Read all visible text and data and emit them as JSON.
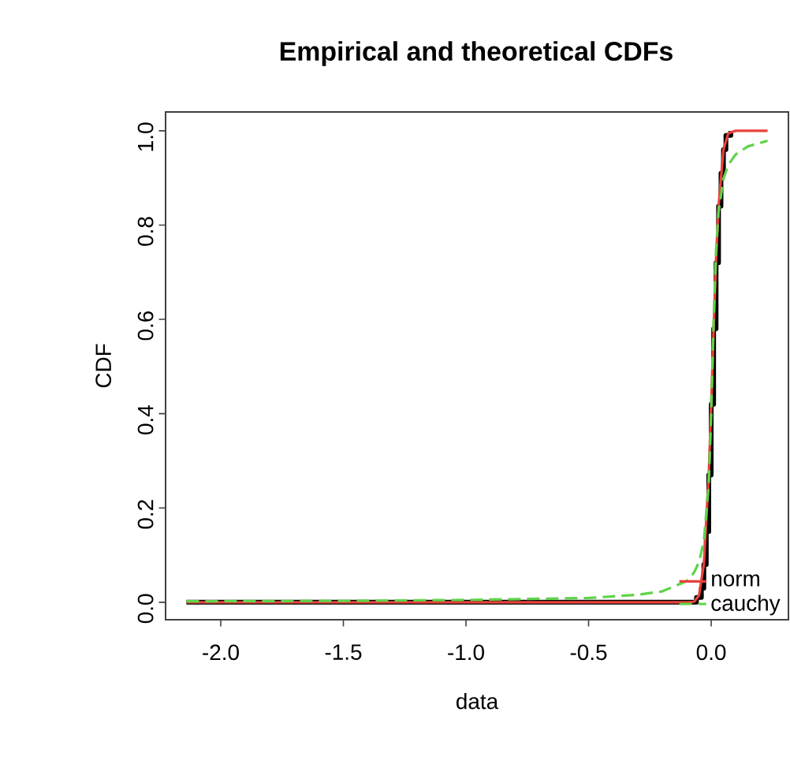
{
  "chart_data": {
    "type": "line",
    "title": "Empirical and theoretical CDFs",
    "xlabel": "data",
    "ylabel": "CDF",
    "xlim": [
      -2.225,
      0.315
    ],
    "ylim": [
      -0.037,
      1.04
    ],
    "xticks": [
      {
        "value": -2.0,
        "label": "-2.0"
      },
      {
        "value": -1.5,
        "label": "-1.5"
      },
      {
        "value": -1.0,
        "label": "-1.0"
      },
      {
        "value": -0.5,
        "label": "-0.5"
      },
      {
        "value": 0.0,
        "label": "0.0"
      }
    ],
    "yticks": [
      {
        "value": 0.0,
        "label": "0.0"
      },
      {
        "value": 0.2,
        "label": "0.2"
      },
      {
        "value": 0.4,
        "label": "0.4"
      },
      {
        "value": 0.6,
        "label": "0.6"
      },
      {
        "value": 0.8,
        "label": "0.8"
      },
      {
        "value": 1.0,
        "label": "1.0"
      }
    ],
    "legend": "bottom right",
    "grid": false,
    "series": [
      {
        "type": "step",
        "color": "#000000",
        "line_style": "solid",
        "x": [
          -2.14,
          -0.06,
          -0.04,
          -0.03,
          -0.02,
          -0.01,
          0.0,
          0.01,
          0.02,
          0.03,
          0.04,
          0.05,
          0.06,
          0.08
        ],
        "values": [
          0.0,
          0.01,
          0.03,
          0.08,
          0.15,
          0.27,
          0.42,
          0.58,
          0.72,
          0.84,
          0.91,
          0.96,
          0.99,
          1.0
        ]
      },
      {
        "name": "norm",
        "color": "#e8423a",
        "line_style": "solid",
        "x": [
          -2.14,
          -0.1,
          -0.07,
          -0.05,
          -0.03,
          -0.01,
          0.0,
          0.01,
          0.02,
          0.03,
          0.05,
          0.07,
          0.1,
          0.23
        ],
        "values": [
          0.0,
          0.0,
          0.001,
          0.014,
          0.08,
          0.27,
          0.42,
          0.58,
          0.73,
          0.84,
          0.96,
          0.995,
          1.0,
          1.0
        ]
      },
      {
        "name": "cauchy",
        "color": "#5fd34a",
        "line_style": "dashed",
        "x": [
          -2.14,
          -1.5,
          -1.0,
          -0.5,
          -0.3,
          -0.2,
          -0.1,
          -0.07,
          -0.05,
          -0.03,
          -0.01,
          0.0,
          0.01,
          0.02,
          0.03,
          0.05,
          0.07,
          0.1,
          0.15,
          0.23
        ],
        "values": [
          0.002,
          0.003,
          0.005,
          0.009,
          0.016,
          0.023,
          0.045,
          0.063,
          0.085,
          0.129,
          0.25,
          0.398,
          0.602,
          0.75,
          0.828,
          0.898,
          0.928,
          0.95,
          0.967,
          0.979
        ]
      }
    ]
  }
}
